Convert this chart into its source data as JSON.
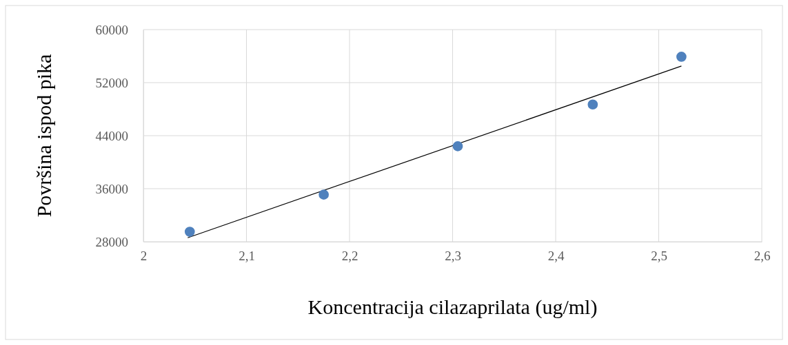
{
  "chart_data": {
    "type": "scatter",
    "xlabel": "Koncentracija cilazaprilata (ug/ml)",
    "ylabel": "Površina ispod pika",
    "xlim": [
      2,
      2.6
    ],
    "xticks": [
      2,
      {
        "value": 2.1,
        "label": "2,1"
      },
      {
        "value": 2.2,
        "label": "2,2"
      },
      {
        "value": 2.3,
        "label": "2,3"
      },
      {
        "value": 2.4,
        "label": "2,4"
      },
      {
        "value": 2.5,
        "label": "2,5"
      },
      {
        "value": 2.6,
        "label": "2,6"
      }
    ],
    "ylim": [
      28000,
      60000
    ],
    "yticks": [
      28000,
      36000,
      44000,
      52000,
      60000
    ],
    "grid": true,
    "series": [
      {
        "color": "#4f81bd",
        "marker": "circle",
        "x": [
          2.045,
          2.175,
          2.305,
          2.436,
          2.522
        ],
        "values": [
          29500,
          35100,
          42400,
          48700,
          55900
        ]
      },
      {
        "type": "line",
        "color": "#000000",
        "x": [
          2.043,
          2.522
        ],
        "values": [
          28600,
          54500
        ]
      }
    ]
  }
}
